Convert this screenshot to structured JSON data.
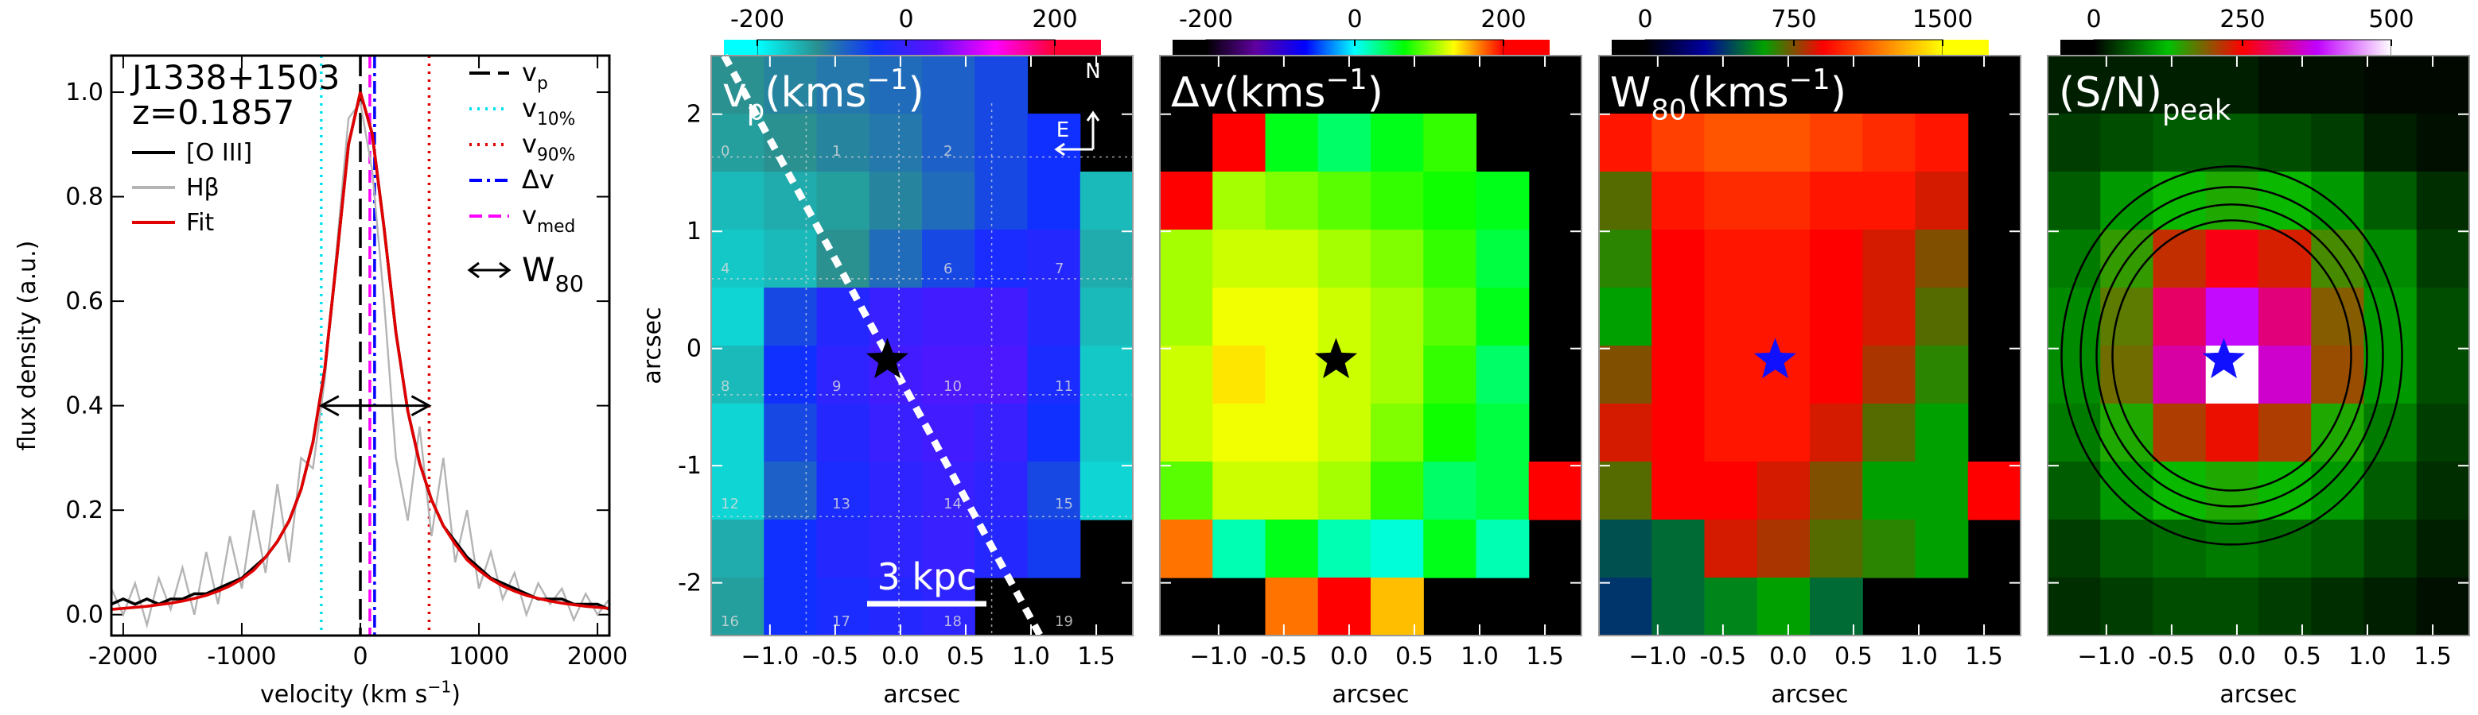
{
  "chart_data": [
    {
      "type": "line",
      "title": [
        "J1338+1503",
        "z=0.1857"
      ],
      "xlabel": [
        {
          "t": "velocity (km s"
        },
        {
          "t": "−1",
          "s": "sup"
        },
        {
          "t": ")"
        }
      ],
      "ylabel": [
        {
          "t": "flux density (a.u.)"
        }
      ],
      "x": [
        -2100,
        -2000,
        -1900,
        -1800,
        -1700,
        -1600,
        -1500,
        -1400,
        -1300,
        -1200,
        -1100,
        -1000,
        -900,
        -800,
        -700,
        -600,
        -500,
        -400,
        -300,
        -200,
        -100,
        0,
        100,
        200,
        300,
        400,
        500,
        600,
        700,
        800,
        900,
        1000,
        1100,
        1200,
        1300,
        1400,
        1500,
        1600,
        1700,
        1800,
        1900,
        2000,
        2100
      ],
      "series": [
        {
          "name": "[O III]",
          "color": "#000000",
          "width": 3,
          "values": [
            0.02,
            0.03,
            0.02,
            0.03,
            0.02,
            0.03,
            0.03,
            0.04,
            0.04,
            0.05,
            0.06,
            0.07,
            0.09,
            0.11,
            0.14,
            0.18,
            0.24,
            0.33,
            0.47,
            0.68,
            0.9,
            1.0,
            0.92,
            0.74,
            0.54,
            0.39,
            0.29,
            0.22,
            0.17,
            0.14,
            0.11,
            0.09,
            0.07,
            0.06,
            0.05,
            0.04,
            0.03,
            0.03,
            0.03,
            0.02,
            0.02,
            0.02,
            0.01
          ]
        },
        {
          "name": "Hβ",
          "color": "#b4b4b4",
          "width": 2,
          "values": [
            0.05,
            0.0,
            0.06,
            -0.02,
            0.07,
            0.01,
            0.09,
            0.0,
            0.12,
            0.02,
            0.15,
            0.05,
            0.2,
            0.08,
            0.25,
            0.1,
            0.3,
            0.28,
            0.45,
            0.7,
            0.95,
            0.98,
            0.85,
            0.6,
            0.3,
            0.18,
            0.36,
            0.15,
            0.3,
            0.1,
            0.2,
            0.05,
            0.12,
            0.03,
            0.08,
            0.0,
            0.06,
            0.02,
            0.05,
            -0.01,
            0.04,
            0.0,
            0.03
          ]
        },
        {
          "name": "Fit",
          "color": "#e00000",
          "width": 3,
          "values": [
            0.01,
            0.012,
            0.014,
            0.016,
            0.019,
            0.022,
            0.026,
            0.031,
            0.037,
            0.045,
            0.055,
            0.068,
            0.085,
            0.11,
            0.14,
            0.18,
            0.24,
            0.33,
            0.47,
            0.68,
            0.9,
            1.0,
            0.92,
            0.74,
            0.54,
            0.39,
            0.29,
            0.22,
            0.17,
            0.135,
            0.105,
            0.085,
            0.068,
            0.055,
            0.045,
            0.037,
            0.031,
            0.026,
            0.022,
            0.019,
            0.016,
            0.014,
            0.012
          ]
        }
      ],
      "xlim": [
        -2100,
        2100
      ],
      "ylim": [
        -0.04,
        1.07
      ],
      "xticks": [
        -2000,
        -1000,
        0,
        1000,
        2000
      ],
      "yticks": [
        {
          "value": 0,
          "label": "0.0"
        },
        0.2,
        0.4,
        0.6,
        0.8,
        {
          "value": 1,
          "label": "1.0"
        }
      ],
      "vlines": [
        {
          "name": [
            {
              "t": "v"
            },
            {
              "t": "p",
              "s": "sub"
            }
          ],
          "x": 0,
          "color": "#000000",
          "dash": "26 10"
        },
        {
          "name": [
            {
              "t": "v"
            },
            {
              "t": "10%",
              "s": "sub"
            }
          ],
          "x": -330,
          "color": "#00e0f0",
          "dash": "3 7"
        },
        {
          "name": [
            {
              "t": "v"
            },
            {
              "t": "90%",
              "s": "sub"
            }
          ],
          "x": 580,
          "color": "#e00000",
          "dash": "3 7"
        },
        {
          "name": [
            {
              "t": "Δv"
            }
          ],
          "x": 120,
          "color": "#0000ff",
          "dash": "16 6 4 6"
        },
        {
          "name": [
            {
              "t": "v"
            },
            {
              "t": "med",
              "s": "sub"
            }
          ],
          "x": 80,
          "color": "#ff00ff",
          "dash": "16 8"
        }
      ],
      "arrow": {
        "name": [
          {
            "t": "W"
          },
          {
            "t": "80",
            "s": "sub"
          }
        ],
        "x": [
          -330,
          580
        ],
        "y": 0.4
      }
    },
    {
      "type": "heatmap",
      "title": [
        {
          "t": "v"
        },
        {
          "t": "p",
          "s": "sub"
        },
        {
          "t": "(kms"
        },
        {
          "t": "−1",
          "s": "sup"
        },
        {
          "t": ")"
        }
      ],
      "colormap": [
        "#00ffff",
        "#2a9090",
        "#1030ff",
        "#6010ff",
        "#ff00ff",
        "#ff0030"
      ],
      "cbticks": [
        -200,
        0,
        200
      ],
      "values": [
        [
          -120,
          -110,
          -100,
          -90,
          -80,
          -60,
          null,
          null
        ],
        [
          -130,
          -120,
          -110,
          -100,
          -80,
          -60,
          -40,
          null
        ],
        [
          -150,
          -140,
          -130,
          -110,
          -90,
          -60,
          -40,
          -150
        ],
        [
          -160,
          -150,
          -120,
          -90,
          -60,
          -30,
          -20,
          -140
        ],
        [
          -170,
          -60,
          -20,
          0,
          10,
          10,
          -20,
          -150
        ],
        [
          -150,
          -40,
          -10,
          10,
          20,
          20,
          -30,
          -160
        ],
        [
          -170,
          -60,
          -20,
          0,
          10,
          0,
          -40,
          -160
        ],
        [
          -170,
          -80,
          -30,
          -10,
          0,
          -10,
          -60,
          -170
        ],
        [
          -140,
          -40,
          -20,
          -10,
          0,
          -20,
          -50,
          null
        ],
        [
          -130,
          -40,
          -30,
          -20,
          -10,
          null,
          null,
          null
        ]
      ],
      "xlim": [
        -1.45,
        1.78
      ],
      "ylim": [
        -2.45,
        2.5
      ],
      "xticks": [
        {
          "value": -1,
          "label": "−1.0"
        },
        -0.5,
        {
          "value": 0,
          "label": "0.0"
        },
        0.5,
        {
          "value": 1,
          "label": "1.0"
        },
        1.5
      ],
      "yticks": [
        -2,
        -1,
        0,
        1,
        2
      ],
      "show_ytick_labels": true,
      "xlabel": "arcsec",
      "ylabel": "arcsec",
      "star": {
        "x": -0.1,
        "y": -0.1,
        "color": "#000000"
      },
      "compass": [
        "N",
        "E"
      ],
      "scalebar": "3 kpc",
      "pa_line": {
        "x": [
          -1.35,
          1.07
        ],
        "y": [
          2.5,
          -2.45
        ]
      },
      "bin_labels": [
        0,
        1,
        2,
        null,
        4,
        null,
        6,
        7,
        8,
        9,
        10,
        11,
        12,
        13,
        14,
        15,
        16,
        17,
        18,
        19
      ]
    },
    {
      "type": "heatmap",
      "title": [
        {
          "t": "Δv(kms"
        },
        {
          "t": "−1",
          "s": "sup"
        },
        {
          "t": ")"
        }
      ],
      "colormap": [
        "#000000",
        "#6000a0",
        "#0000ff",
        "#00ffff",
        "#00ff00",
        "#ffff00",
        "#ff0000"
      ],
      "cbticks": [
        -200,
        0,
        200
      ],
      "values": [
        [
          null,
          null,
          null,
          null,
          null,
          null,
          null,
          null
        ],
        [
          null,
          200,
          60,
          40,
          60,
          80,
          null,
          null
        ],
        [
          200,
          110,
          100,
          90,
          80,
          70,
          60,
          null
        ],
        [
          110,
          120,
          120,
          110,
          100,
          80,
          50,
          null
        ],
        [
          110,
          130,
          130,
          120,
          110,
          90,
          60,
          null
        ],
        [
          120,
          140,
          130,
          120,
          110,
          80,
          40,
          null
        ],
        [
          120,
          130,
          130,
          120,
          100,
          70,
          50,
          null
        ],
        [
          90,
          120,
          120,
          110,
          80,
          40,
          50,
          200
        ],
        [
          170,
          20,
          60,
          20,
          10,
          60,
          20,
          null
        ],
        [
          null,
          null,
          170,
          200,
          150,
          null,
          null,
          null
        ]
      ],
      "xlim": [
        -1.45,
        1.78
      ],
      "ylim": [
        -2.45,
        2.5
      ],
      "xticks": [
        {
          "value": -1,
          "label": "−1.0"
        },
        -0.5,
        {
          "value": 0,
          "label": "0.0"
        },
        0.5,
        {
          "value": 1,
          "label": "1.0"
        },
        1.5
      ],
      "yticks": [
        -2,
        -1,
        0,
        1,
        2
      ],
      "show_ytick_labels": false,
      "xlabel": "arcsec",
      "star": {
        "x": -0.1,
        "y": -0.1,
        "color": "#000000"
      }
    },
    {
      "type": "heatmap",
      "title": [
        {
          "t": "W"
        },
        {
          "t": "80",
          "s": "sub"
        },
        {
          "t": "(kms"
        },
        {
          "t": "−1",
          "s": "sup"
        },
        {
          "t": ")"
        }
      ],
      "colormap": [
        "#000000",
        "#0000a0",
        "#00a000",
        "#ff0000",
        "#ff8000",
        "#ffff00"
      ],
      "cbticks": [
        0,
        750,
        1500
      ],
      "values": [
        [
          null,
          null,
          null,
          null,
          null,
          null,
          null,
          null
        ],
        [
          950,
          1050,
          1100,
          1100,
          1050,
          1000,
          950,
          null
        ],
        [
          700,
          950,
          1000,
          1000,
          950,
          950,
          850,
          null
        ],
        [
          650,
          900,
          950,
          950,
          900,
          850,
          750,
          null
        ],
        [
          600,
          900,
          950,
          950,
          900,
          850,
          700,
          null
        ],
        [
          750,
          900,
          950,
          950,
          900,
          800,
          650,
          null
        ],
        [
          850,
          900,
          950,
          950,
          850,
          700,
          600,
          null
        ],
        [
          700,
          900,
          900,
          850,
          750,
          600,
          600,
          900
        ],
        [
          450,
          500,
          850,
          800,
          700,
          650,
          600,
          null
        ],
        [
          400,
          500,
          550,
          600,
          500,
          null,
          null,
          null
        ]
      ],
      "xlim": [
        -1.45,
        1.78
      ],
      "ylim": [
        -2.45,
        2.5
      ],
      "xticks": [
        {
          "value": -1,
          "label": "−1.0"
        },
        -0.5,
        {
          "value": 0,
          "label": "0.0"
        },
        0.5,
        {
          "value": 1,
          "label": "1.0"
        },
        1.5
      ],
      "yticks": [
        -2,
        -1,
        0,
        1,
        2
      ],
      "show_ytick_labels": false,
      "xlabel": "arcsec",
      "star": {
        "x": -0.1,
        "y": -0.1,
        "color": "#1010ff"
      }
    },
    {
      "type": "heatmap",
      "title": [
        {
          "t": "(S/N)"
        },
        {
          "t": "peak",
          "s": "sub"
        }
      ],
      "colormap": [
        "#000000",
        "#00c000",
        "#ff0000",
        "#c000ff",
        "#ffffff"
      ],
      "cbticks": [
        0,
        250,
        500
      ],
      "values": [
        [
          20,
          20,
          20,
          20,
          10,
          10,
          5,
          5
        ],
        [
          40,
          50,
          60,
          60,
          50,
          40,
          20,
          10
        ],
        [
          60,
          100,
          130,
          140,
          130,
          100,
          60,
          30
        ],
        [
          80,
          150,
          220,
          260,
          230,
          160,
          90,
          40
        ],
        [
          90,
          170,
          300,
          380,
          310,
          190,
          100,
          50
        ],
        [
          90,
          180,
          330,
          500,
          350,
          200,
          100,
          50
        ],
        [
          80,
          140,
          210,
          240,
          210,
          140,
          80,
          40
        ],
        [
          60,
          100,
          130,
          140,
          130,
          100,
          60,
          30
        ],
        [
          40,
          60,
          70,
          80,
          70,
          60,
          40,
          20
        ],
        [
          30,
          40,
          50,
          50,
          40,
          30,
          20,
          10
        ]
      ],
      "xlim": [
        -1.45,
        1.78
      ],
      "ylim": [
        -2.45,
        2.5
      ],
      "xticks": [
        {
          "value": -1,
          "label": "−1.0"
        },
        -0.5,
        {
          "value": 0,
          "label": "0.0"
        },
        0.5,
        {
          "value": 1,
          "label": "1.0"
        },
        1.5
      ],
      "yticks": [
        -2,
        -1,
        0,
        1,
        2
      ],
      "show_ytick_labels": false,
      "xlabel": "arcsec",
      "star": {
        "x": -0.1,
        "y": -0.1,
        "color": "#1010ff"
      },
      "contours": true
    }
  ]
}
